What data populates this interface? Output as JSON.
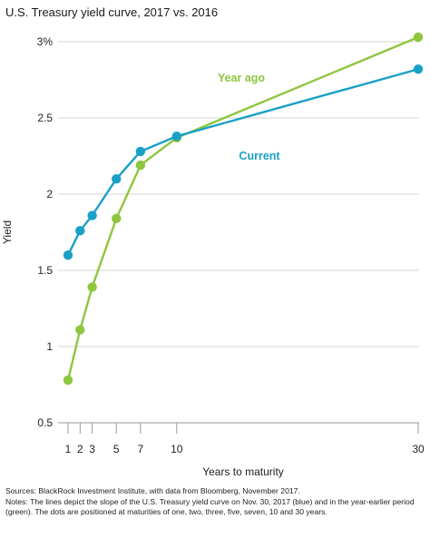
{
  "title": "U.S. Treasury yield curve, 2017 vs. 2016",
  "chart_data": {
    "type": "line",
    "title": "U.S. Treasury yield curve, 2017 vs. 2016",
    "xlabel": "Years to maturity",
    "ylabel": "Yield",
    "ylim": [
      0.5,
      3.0
    ],
    "yticks": [
      "0.5",
      "1",
      "1.5",
      "2",
      "2.5",
      "3%"
    ],
    "ytick_values": [
      0.5,
      1.0,
      1.5,
      2.0,
      2.5,
      3.0
    ],
    "xticks": [
      "1",
      "2",
      "3",
      "5",
      "7",
      "10",
      "30"
    ],
    "xtick_values": [
      1,
      2,
      3,
      5,
      7,
      10,
      30
    ],
    "x": [
      1,
      2,
      3,
      5,
      7,
      10,
      30
    ],
    "grid": "horizontal",
    "series": [
      {
        "name": "Current",
        "color": "#1aa0c6",
        "values": [
          1.6,
          1.76,
          1.86,
          2.1,
          2.28,
          2.38,
          2.82
        ]
      },
      {
        "name": "Year ago",
        "color": "#8dc63f",
        "values": [
          0.78,
          1.11,
          1.39,
          1.84,
          2.19,
          2.37,
          3.03
        ]
      }
    ]
  },
  "footer": {
    "sources": "Sources: BlackRock Investment Institute, with data from Bloomberg, November 2017.",
    "notes": "Notes: The lines depict the slope of the U.S. Treasury yield curve on Nov. 30, 2017 (blue) and in the year-earlier period (green). The dots are positioned at maturities of one, two, three, five, seven, 10 and 30 years."
  }
}
